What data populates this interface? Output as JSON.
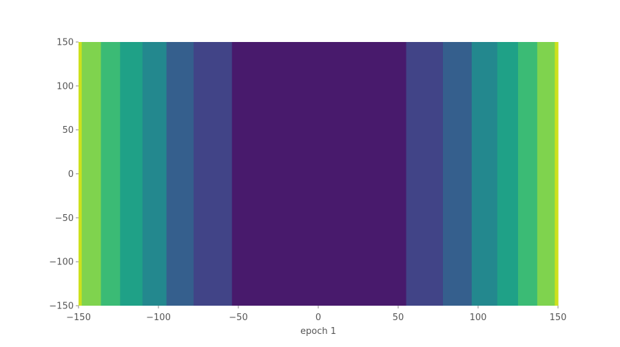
{
  "chart_data": {
    "type": "heatmap",
    "subtype": "filled-contour",
    "title": "",
    "xlabel": "epoch 1",
    "ylabel": "",
    "xlim": [
      -150,
      150
    ],
    "ylim": [
      -150,
      150
    ],
    "x_ticks": [
      -150,
      -100,
      -50,
      0,
      50,
      100,
      150
    ],
    "y_ticks": [
      -150,
      -100,
      -50,
      0,
      50,
      100,
      150
    ],
    "x_tick_labels": [
      "−150",
      "−100",
      "−50",
      "0",
      "50",
      "100",
      "150"
    ],
    "y_tick_labels": [
      "−150",
      "−100",
      "−50",
      "0",
      "50",
      "100",
      "150"
    ],
    "grid": false,
    "colormap": "viridis",
    "bands": [
      {
        "x0": -150,
        "x1": -148,
        "color": "#cde11d"
      },
      {
        "x0": -148,
        "x1": -136,
        "color": "#7fd34e"
      },
      {
        "x0": -136,
        "x1": -124,
        "color": "#3bbb75"
      },
      {
        "x0": -124,
        "x1": -110,
        "color": "#1fa187"
      },
      {
        "x0": -110,
        "x1": -95,
        "color": "#23888e"
      },
      {
        "x0": -95,
        "x1": -78,
        "color": "#355f8d"
      },
      {
        "x0": -78,
        "x1": -54,
        "color": "#414487"
      },
      {
        "x0": -54,
        "x1": 55,
        "color": "#481a6c"
      },
      {
        "x0": 55,
        "x1": 78,
        "color": "#414487"
      },
      {
        "x0": 78,
        "x1": 96,
        "color": "#355f8d"
      },
      {
        "x0": 96,
        "x1": 112,
        "color": "#23888e"
      },
      {
        "x0": 112,
        "x1": 125,
        "color": "#1fa187"
      },
      {
        "x0": 125,
        "x1": 137,
        "color": "#3bbb75"
      },
      {
        "x0": 137,
        "x1": 148,
        "color": "#7fd34e"
      },
      {
        "x0": 148,
        "x1": 150,
        "color": "#cde11d"
      }
    ]
  }
}
